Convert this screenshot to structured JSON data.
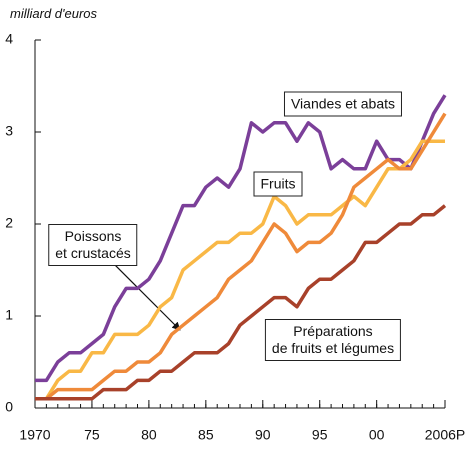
{
  "chart_data": {
    "type": "line",
    "y_label": "milliard d'euros",
    "x": [
      1970,
      1971,
      1972,
      1973,
      1974,
      1975,
      1976,
      1977,
      1978,
      1979,
      1980,
      1981,
      1982,
      1983,
      1984,
      1985,
      1986,
      1987,
      1988,
      1989,
      1990,
      1991,
      1992,
      1993,
      1994,
      1995,
      1996,
      1997,
      1998,
      1999,
      2000,
      2001,
      2002,
      2003,
      2004,
      2005,
      2006
    ],
    "xlim": [
      1970,
      2006
    ],
    "xticks": [
      1970,
      {
        "value": 1975,
        "label": "75"
      },
      {
        "value": 1980,
        "label": "80"
      },
      {
        "value": 1985,
        "label": "85"
      },
      {
        "value": 1990,
        "label": "90"
      },
      {
        "value": 1995,
        "label": "95"
      },
      {
        "value": 2000,
        "label": "00"
      },
      {
        "value": 2006,
        "label": "2006P"
      }
    ],
    "ylim": [
      0,
      4
    ],
    "yticks": [
      0,
      1,
      2,
      3,
      4
    ],
    "series": [
      {
        "name": "Viandes et abats",
        "color": "#7b3f99",
        "values": [
          0.3,
          0.3,
          0.5,
          0.6,
          0.6,
          0.7,
          0.8,
          1.1,
          1.3,
          1.3,
          1.4,
          1.6,
          1.9,
          2.2,
          2.2,
          2.4,
          2.5,
          2.4,
          2.6,
          3.1,
          3.0,
          3.1,
          3.1,
          2.9,
          3.1,
          3.0,
          2.6,
          2.7,
          2.6,
          2.6,
          2.9,
          2.7,
          2.7,
          2.6,
          2.9,
          3.2,
          3.4
        ]
      },
      {
        "name": "Fruits",
        "color": "#f9b846",
        "values": [
          0.1,
          0.1,
          0.3,
          0.4,
          0.4,
          0.6,
          0.6,
          0.8,
          0.8,
          0.8,
          0.9,
          1.1,
          1.2,
          1.5,
          1.6,
          1.7,
          1.8,
          1.8,
          1.9,
          1.9,
          2.0,
          2.3,
          2.2,
          2.0,
          2.1,
          2.1,
          2.1,
          2.2,
          2.3,
          2.2,
          2.4,
          2.6,
          2.6,
          2.7,
          2.9,
          2.9,
          2.9
        ]
      },
      {
        "name": "Poissons\net crustacés",
        "color": "#ef8a3a",
        "values": [
          0.1,
          0.1,
          0.2,
          0.2,
          0.2,
          0.2,
          0.3,
          0.4,
          0.4,
          0.5,
          0.5,
          0.6,
          0.8,
          0.9,
          1.0,
          1.1,
          1.2,
          1.4,
          1.5,
          1.6,
          1.8,
          2.0,
          1.9,
          1.7,
          1.8,
          1.8,
          1.9,
          2.1,
          2.4,
          2.5,
          2.6,
          2.7,
          2.6,
          2.6,
          2.8,
          3.0,
          3.2
        ]
      },
      {
        "name": "Préparations\nde fruits et légumes",
        "color": "#a8412a",
        "values": [
          0.1,
          0.1,
          0.1,
          0.1,
          0.1,
          0.1,
          0.2,
          0.2,
          0.2,
          0.3,
          0.3,
          0.4,
          0.4,
          0.5,
          0.6,
          0.6,
          0.6,
          0.7,
          0.9,
          1.0,
          1.1,
          1.2,
          1.2,
          1.1,
          1.3,
          1.4,
          1.4,
          1.5,
          1.6,
          1.8,
          1.8,
          1.9,
          2.0,
          2.0,
          2.1,
          2.1,
          2.2
        ]
      }
    ]
  }
}
